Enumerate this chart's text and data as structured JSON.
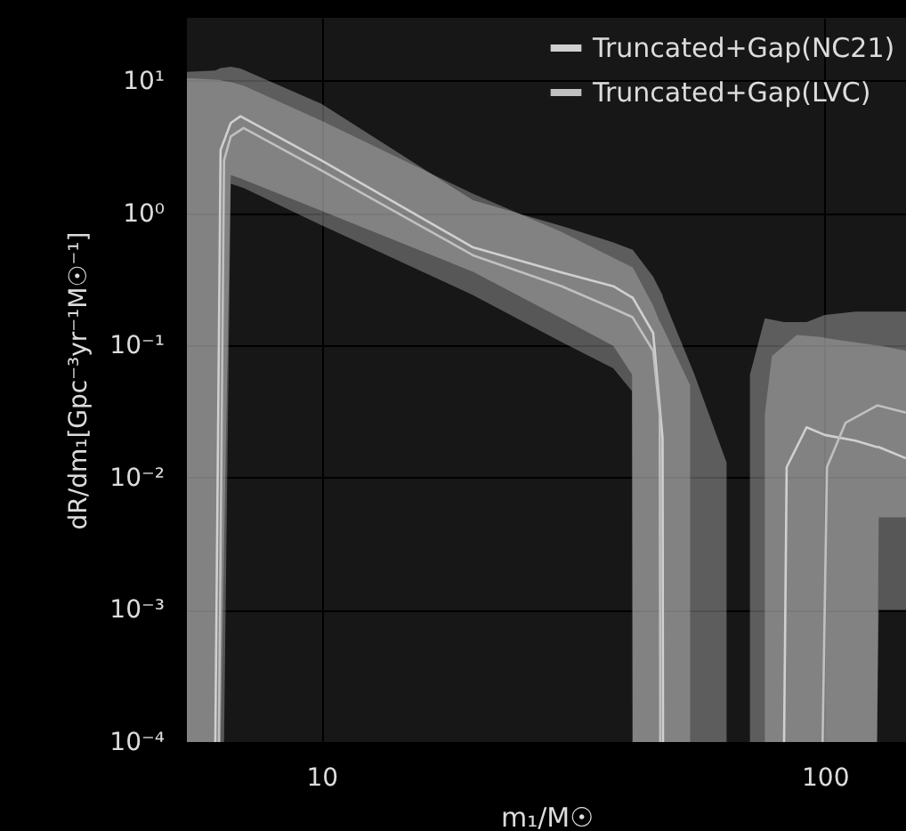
{
  "chart_data": {
    "type": "line",
    "xlabel": "m₁/M☉",
    "ylabel": "dR/dm₁[Gpc⁻³yr⁻¹M☉⁻¹]",
    "log": "xy",
    "grid": true,
    "legend": "top right",
    "xlim": [
      5.4,
      145
    ],
    "xticks": [
      10,
      100
    ],
    "ylim": [
      0.0001,
      30
    ],
    "yticks": [
      {
        "value": 0.0001,
        "label": "10⁻⁴"
      },
      {
        "value": 0.001,
        "label": "10⁻³"
      },
      {
        "value": 0.01,
        "label": "10⁻²"
      },
      {
        "value": 0.1,
        "label": "10⁻¹"
      },
      {
        "value": 1,
        "label": "10⁰"
      },
      {
        "value": 10,
        "label": "10¹"
      }
    ],
    "series": [
      {
        "name": "Truncated+Gap(NC21)",
        "color": "#d0d0d0",
        "x": [
          5.4,
          6.15,
          6.3,
          6.6,
          6.9,
          10,
          20,
          30,
          38,
          41.4,
          41.5,
          45.6,
          47.6,
          47.7,
          55,
          63.8,
          65,
          71,
          76,
          83,
          84,
          92,
          100,
          115,
          127,
          128,
          145
        ],
        "values": [
          null,
          0.0001,
          3.0,
          4.8,
          5.4,
          2.5,
          0.55,
          0.355,
          0.28,
          0.23,
          0.23,
          0.124,
          0.02,
          0.0001,
          null,
          null,
          null,
          null,
          null,
          0.0001,
          0.012,
          0.024,
          0.021,
          0.019,
          0.017,
          0.017,
          0.014
        ],
        "upper": [
          11.7,
          12,
          12.5,
          12.8,
          12.4,
          6.7,
          1.25,
          0.8,
          0.6,
          0.53,
          0.53,
          0.33,
          0.24,
          0.23,
          0.061,
          0.013,
          null,
          0.06,
          0.16,
          0.15,
          0.15,
          0.15,
          0.17,
          0.18,
          0.18,
          0.18,
          0.18
        ],
        "lower": [
          0.0001,
          0.0001,
          0.0001,
          1.94,
          1.83,
          1.04,
          0.36,
          0.16,
          0.099,
          0.06,
          0.0001,
          0.0001,
          0.0001,
          0.0001,
          0.0001,
          0.0001,
          null,
          0.0001,
          0.0001,
          0.0001,
          0.0001,
          0.0001,
          0.0001,
          0.0001,
          0.0001,
          0.005,
          0.005
        ]
      },
      {
        "name": "Truncated+Gap(LVC)",
        "color": "#c0c0c0",
        "x": [
          5.4,
          6.25,
          6.4,
          6.6,
          7.0,
          10,
          20,
          30,
          38,
          41.4,
          41.5,
          45.6,
          47.0,
          47.1,
          54,
          60,
          76,
          78.5,
          88,
          98.9,
          99,
          101,
          110,
          127,
          128,
          145
        ],
        "values": [
          null,
          0.0001,
          2.5,
          3.8,
          4.4,
          2.1,
          0.48,
          0.28,
          0.19,
          0.164,
          0.163,
          0.091,
          0.03,
          0.0001,
          null,
          null,
          null,
          null,
          null,
          null,
          0.0001,
          0.012,
          0.026,
          0.035,
          0.035,
          0.031
        ],
        "upper": [
          10.5,
          10.2,
          10,
          9.8,
          9.2,
          5.0,
          1.4,
          0.72,
          0.46,
          0.39,
          0.39,
          0.2,
          0.15,
          0.15,
          0.05,
          null,
          0.03,
          0.083,
          0.12,
          0.115,
          0.115,
          0.113,
          0.108,
          0.1,
          0.1,
          0.091
        ],
        "lower": [
          0.0001,
          0.0001,
          0.0001,
          1.67,
          1.55,
          0.81,
          0.24,
          0.106,
          0.067,
          0.045,
          0.0001,
          0.0001,
          0.0001,
          0.0001,
          0.0001,
          null,
          0.0001,
          0.0001,
          0.0001,
          0.0001,
          0.0001,
          0.0001,
          0.0001,
          0.0001,
          0.001,
          0.001
        ]
      }
    ]
  }
}
